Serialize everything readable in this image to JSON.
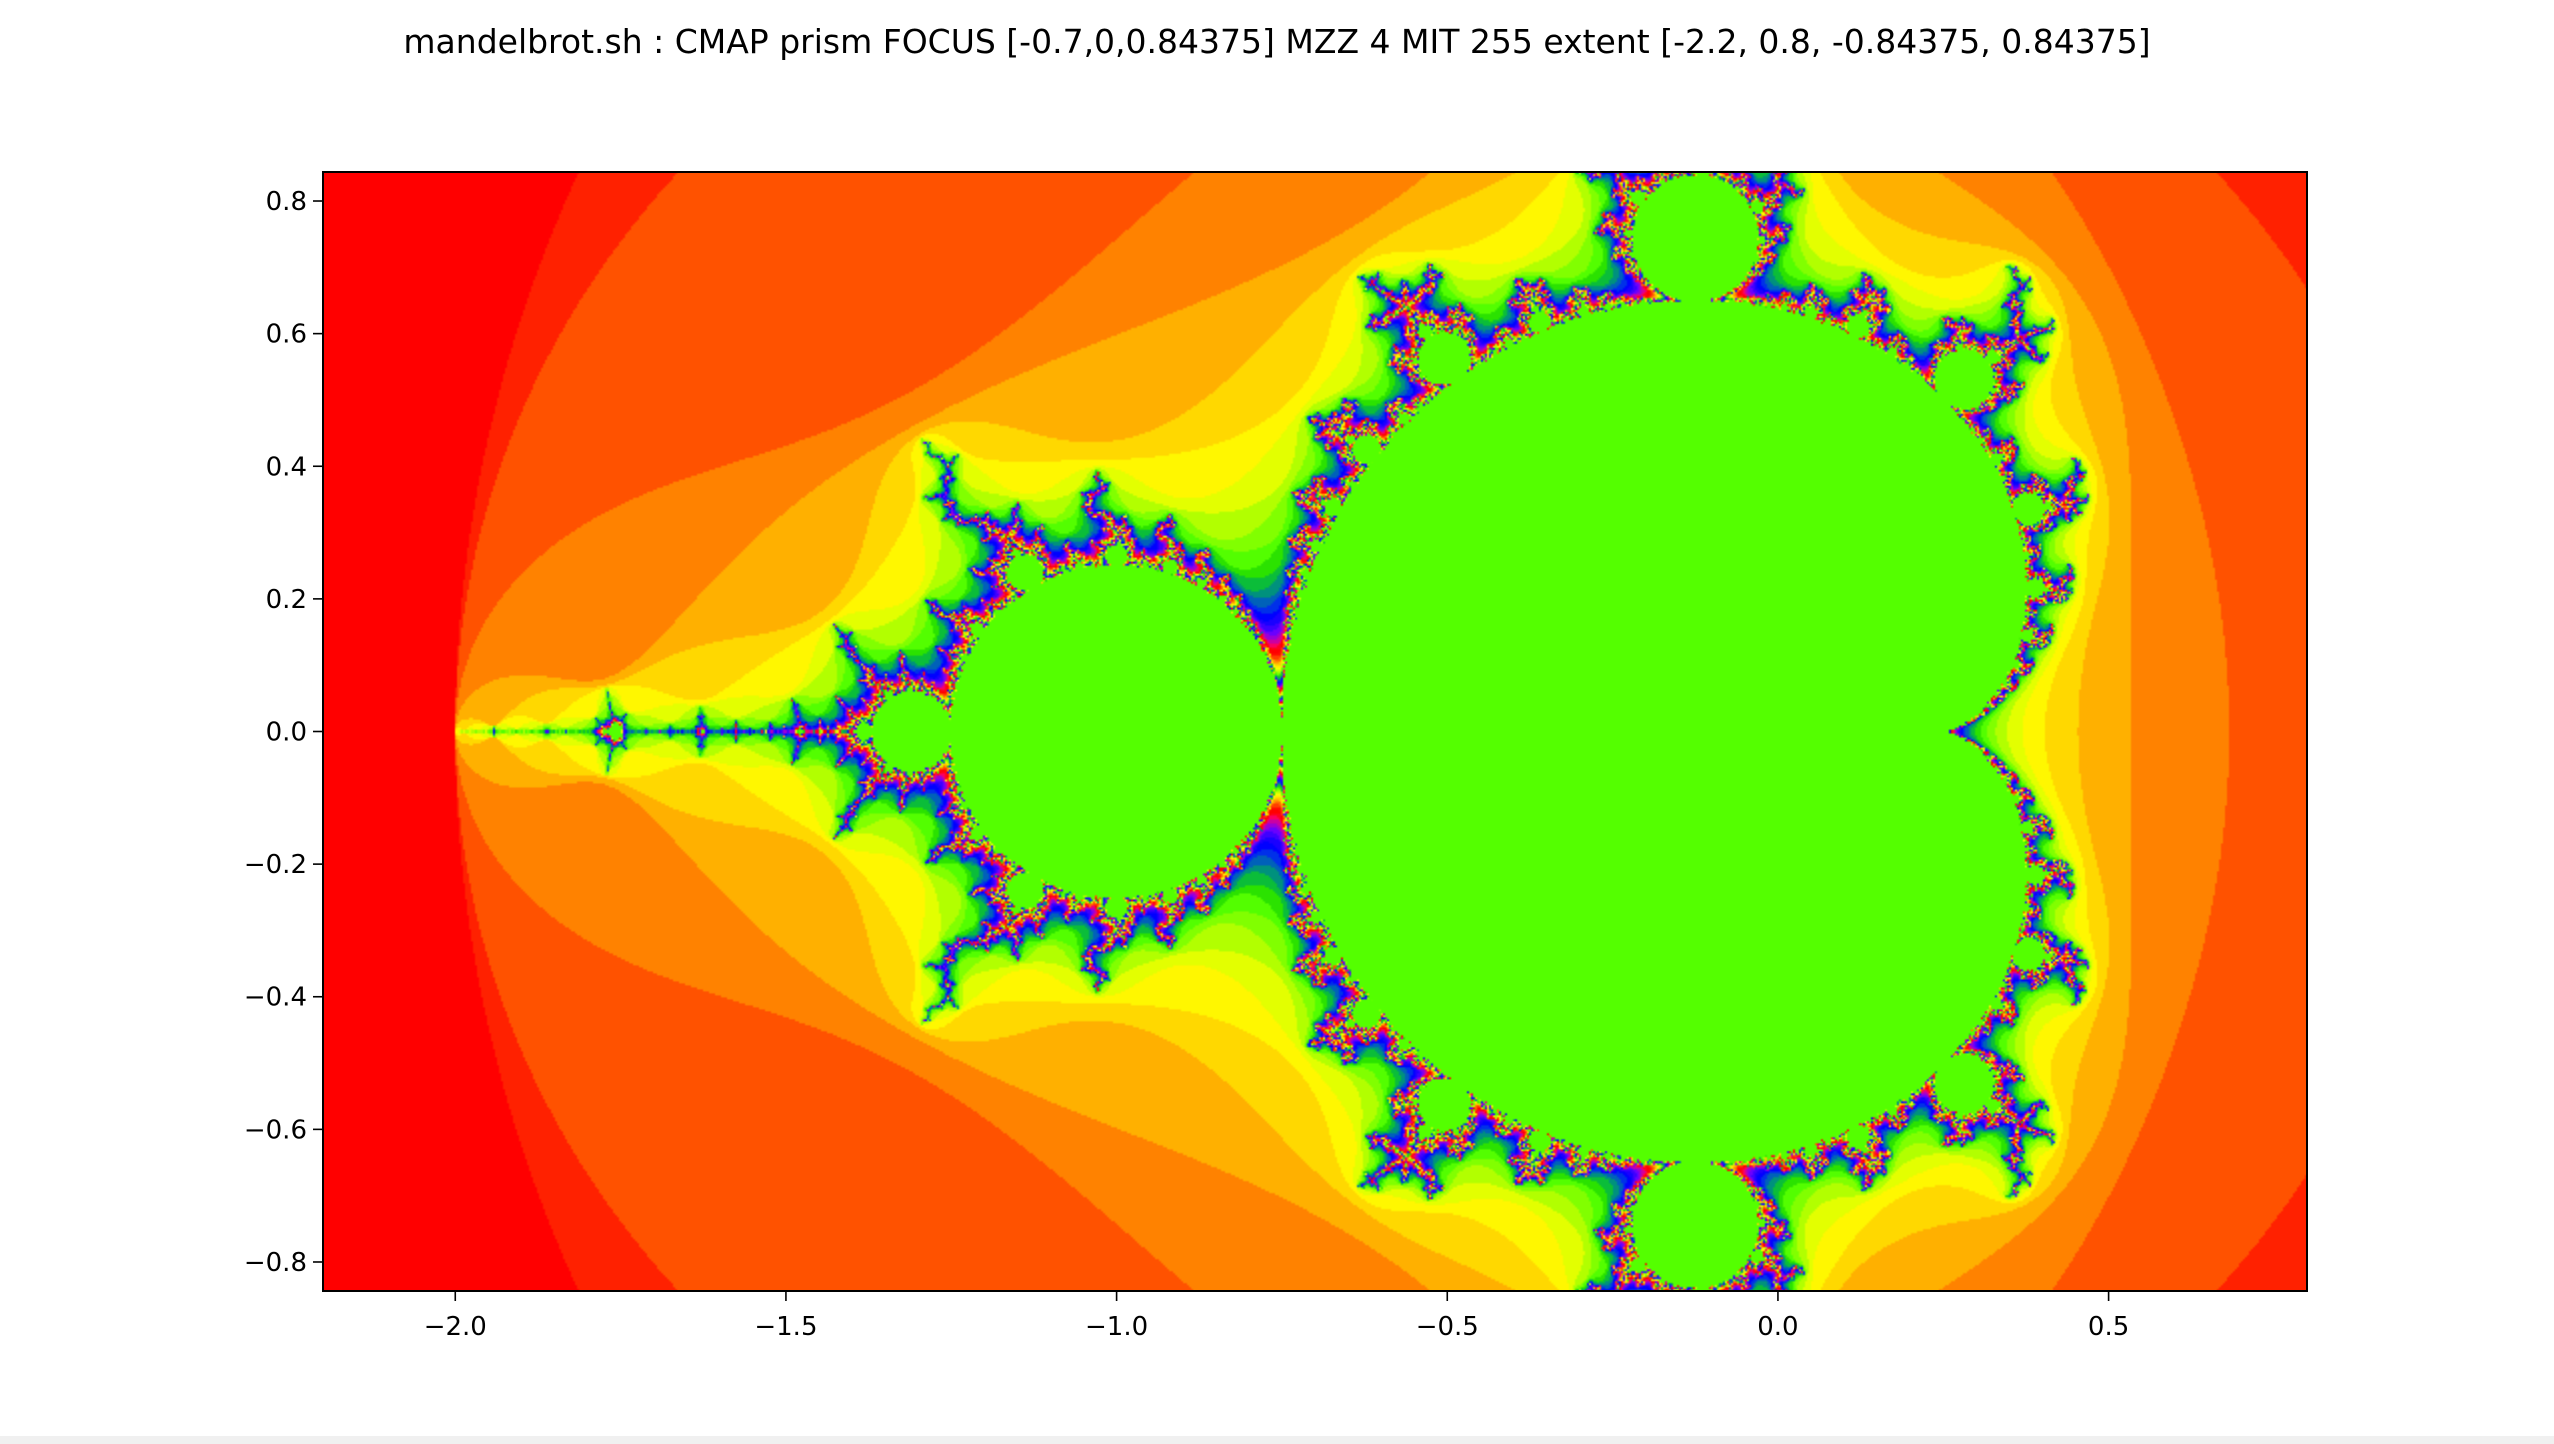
{
  "chart_data": {
    "type": "heatmap",
    "title": "mandelbrot.sh : CMAP prism FOCUS [-0.7,0,0.84375] MZZ 4 MIT 255 extent [-2.2, 0.8, -0.84375, 0.84375]",
    "xlabel": "",
    "ylabel": "",
    "colormap": "prism",
    "max_iterations": 255,
    "escape_radius_squared": 4,
    "xlim": [
      -2.2,
      0.8
    ],
    "ylim": [
      -0.84375,
      0.84375
    ],
    "x_ticks": [
      -2.0,
      -1.5,
      -1.0,
      -0.5,
      0.0,
      0.5
    ],
    "x_tick_labels": [
      "−2.0",
      "−1.5",
      "−1.0",
      "−0.5",
      "0.0",
      "0.5"
    ],
    "y_ticks": [
      0.8,
      0.6,
      0.4,
      0.2,
      0.0,
      -0.2,
      -0.4,
      -0.6,
      -0.8
    ],
    "y_tick_labels": [
      "0.8",
      "0.6",
      "0.4",
      "0.2",
      "0.0",
      "−0.2",
      "−0.4",
      "−0.6",
      "−0.8"
    ],
    "grid": false,
    "colors": {
      "inside_set": "#5dfc00",
      "frame": "#000000"
    }
  }
}
